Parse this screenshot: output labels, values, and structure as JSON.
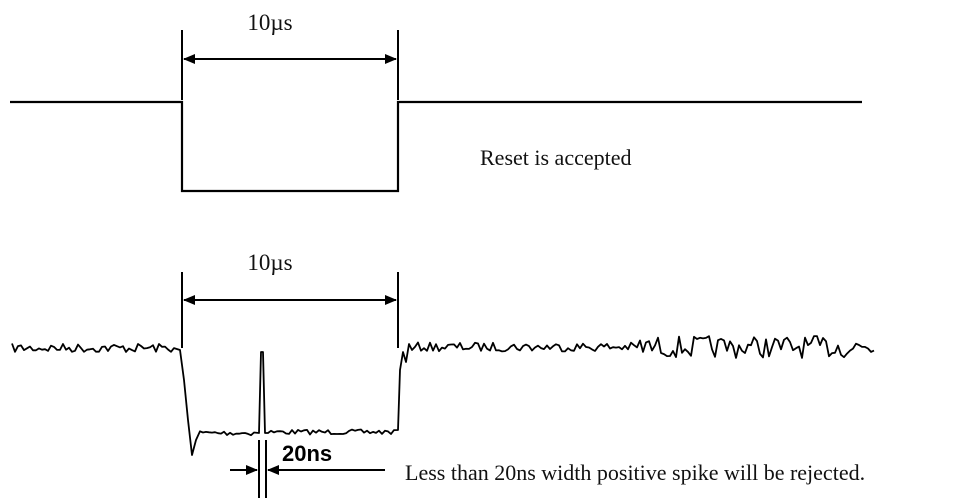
{
  "top_waveform": {
    "width_label": "10µs",
    "caption": "Reset is accepted"
  },
  "bottom_waveform": {
    "width_label": "10µs",
    "spike_label": "20ns",
    "caption": "Less than 20ns width positive spike will be rejected."
  }
}
